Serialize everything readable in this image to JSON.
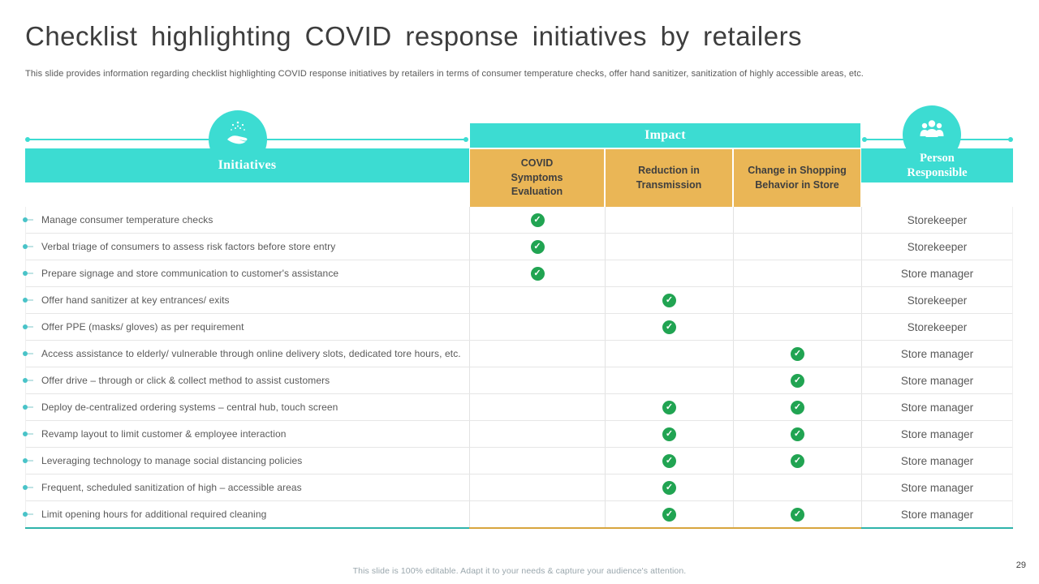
{
  "slide": {
    "title": "Checklist highlighting COVID response initiatives by retailers",
    "subtitle": "This slide provides information regarding checklist highlighting COVID response initiatives by retailers in terms of consumer temperature checks, offer hand sanitizer, sanitization of highly accessible areas, etc.",
    "footer": "This slide is 100% editable.  Adapt it to your needs & capture your audience's attention.",
    "page_number": "29"
  },
  "colors": {
    "teal_accent": "#3cdcd2",
    "gold_accent": "#eab656",
    "check_green": "#21a452",
    "heading_text": "#3d3d3d",
    "body_text": "#595959"
  },
  "icons": {
    "initiatives_circle": "hand-sanitizer-icon",
    "person_circle": "people-group-icon",
    "check": "check-icon"
  },
  "table": {
    "col_initiatives": "Initiatives",
    "col_impact": "Impact",
    "impact_subcols": [
      "COVID Symptoms Evaluation",
      "Reduction in Transmission",
      "Change in Shopping Behavior in Store"
    ],
    "col_person": "Person Responsible",
    "rows": [
      {
        "initiative": "Manage consumer temperature checks",
        "covid_symptoms_evaluation": true,
        "reduction_in_transmission": false,
        "change_in_shopping_behavior": false,
        "person_responsible": "Storekeeper"
      },
      {
        "initiative": "Verbal triage of consumers to assess risk factors before store entry",
        "covid_symptoms_evaluation": true,
        "reduction_in_transmission": false,
        "change_in_shopping_behavior": false,
        "person_responsible": "Storekeeper"
      },
      {
        "initiative": "Prepare signage and store communication to customer's assistance",
        "covid_symptoms_evaluation": true,
        "reduction_in_transmission": false,
        "change_in_shopping_behavior": false,
        "person_responsible": "Store manager"
      },
      {
        "initiative": "Offer hand sanitizer at key entrances/ exits",
        "covid_symptoms_evaluation": false,
        "reduction_in_transmission": true,
        "change_in_shopping_behavior": false,
        "person_responsible": "Storekeeper"
      },
      {
        "initiative": "Offer PPE (masks/ gloves) as per requirement",
        "covid_symptoms_evaluation": false,
        "reduction_in_transmission": true,
        "change_in_shopping_behavior": false,
        "person_responsible": "Storekeeper"
      },
      {
        "initiative": "Access assistance to elderly/ vulnerable through online delivery slots, dedicated tore hours, etc.",
        "covid_symptoms_evaluation": false,
        "reduction_in_transmission": false,
        "change_in_shopping_behavior": true,
        "person_responsible": "Store manager"
      },
      {
        "initiative": "Offer drive – through or click & collect method to assist customers",
        "covid_symptoms_evaluation": false,
        "reduction_in_transmission": false,
        "change_in_shopping_behavior": true,
        "person_responsible": "Store manager"
      },
      {
        "initiative": "Deploy de-centralized ordering systems – central hub, touch screen",
        "covid_symptoms_evaluation": false,
        "reduction_in_transmission": true,
        "change_in_shopping_behavior": true,
        "person_responsible": "Store manager"
      },
      {
        "initiative": "Revamp layout to limit customer & employee interaction",
        "covid_symptoms_evaluation": false,
        "reduction_in_transmission": true,
        "change_in_shopping_behavior": true,
        "person_responsible": "Store manager"
      },
      {
        "initiative": "Leveraging technology to manage social distancing policies",
        "covid_symptoms_evaluation": false,
        "reduction_in_transmission": true,
        "change_in_shopping_behavior": true,
        "person_responsible": "Store manager"
      },
      {
        "initiative": "Frequent, scheduled sanitization of high – accessible areas",
        "covid_symptoms_evaluation": false,
        "reduction_in_transmission": true,
        "change_in_shopping_behavior": false,
        "person_responsible": "Store manager"
      },
      {
        "initiative": "Limit opening hours for additional required cleaning",
        "covid_symptoms_evaluation": false,
        "reduction_in_transmission": true,
        "change_in_shopping_behavior": true,
        "person_responsible": "Store manager"
      }
    ]
  }
}
